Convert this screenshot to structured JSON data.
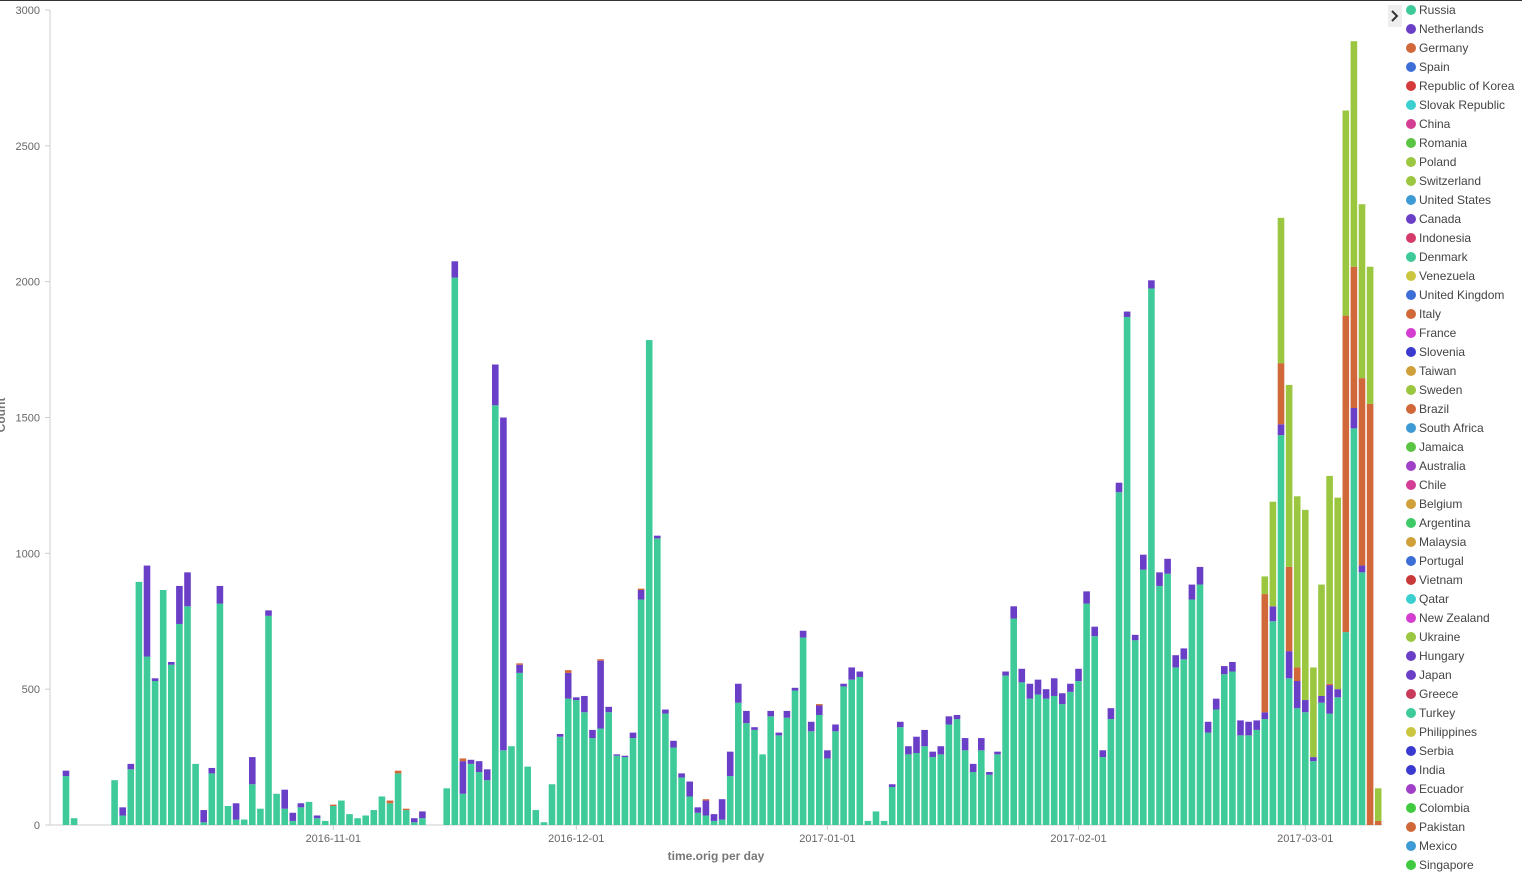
{
  "chart_data": {
    "type": "bar",
    "stacked": true,
    "x_label": "time.orig per day",
    "y_label": "Count",
    "xlim": [
      "2016-09-29",
      "2017-03-10"
    ],
    "xticks": [
      "2016-11-01",
      "2016-12-01",
      "2017-01-01",
      "2017-02-01",
      "2017-03-01"
    ],
    "ylim": [
      0,
      3000
    ],
    "yticks": [
      0,
      500,
      1000,
      1500,
      2000,
      2500,
      3000
    ],
    "series": [
      {
        "name": "Russia",
        "values": [
          180,
          25,
          0,
          0,
          0,
          0,
          165,
          35,
          205,
          895,
          620,
          530,
          865,
          590,
          740,
          805,
          225,
          10,
          190,
          815,
          70,
          20,
          20,
          150,
          60,
          770,
          115,
          60,
          15,
          65,
          85,
          25,
          15,
          70,
          90,
          40,
          25,
          35,
          55,
          105,
          80,
          190,
          55,
          10,
          25,
          0,
          0,
          135,
          2015,
          115,
          225,
          195,
          165,
          1545,
          275,
          290,
          560,
          215,
          55,
          10,
          150,
          325,
          465,
          460,
          415,
          320,
          355,
          415,
          255,
          250,
          320,
          830,
          1785,
          1055,
          410,
          285,
          175,
          105,
          45,
          35,
          15,
          20,
          180,
          450,
          375,
          350,
          260,
          400,
          330,
          395,
          495,
          690,
          345,
          405,
          245,
          345,
          510,
          535,
          545,
          15,
          50,
          15,
          140,
          360,
          260,
          265,
          290,
          250,
          260,
          370,
          390,
          275,
          195,
          275,
          185,
          260,
          550,
          760,
          525,
          465,
          480,
          465,
          475,
          445,
          490,
          530,
          815,
          695,
          250,
          390,
          1225,
          1870,
          680,
          940,
          1975,
          880,
          925,
          580,
          610,
          830,
          885,
          340,
          425,
          555,
          565,
          330,
          330,
          350,
          390,
          750,
          1435,
          540,
          430,
          415,
          235,
          450,
          410,
          470,
          710,
          1460,
          930,
          0,
          0
        ]
      },
      {
        "name": "Netherlands",
        "values": [
          20,
          0,
          0,
          0,
          0,
          0,
          0,
          30,
          20,
          0,
          335,
          10,
          0,
          10,
          140,
          125,
          0,
          45,
          20,
          65,
          0,
          60,
          0,
          100,
          0,
          20,
          0,
          70,
          30,
          15,
          0,
          10,
          0,
          0,
          0,
          0,
          0,
          0,
          0,
          0,
          0,
          0,
          0,
          15,
          25,
          0,
          0,
          0,
          60,
          120,
          15,
          40,
          40,
          150,
          1225,
          0,
          30,
          0,
          0,
          0,
          0,
          10,
          95,
          10,
          60,
          30,
          250,
          20,
          5,
          5,
          20,
          35,
          0,
          10,
          15,
          25,
          15,
          55,
          20,
          55,
          25,
          75,
          90,
          70,
          45,
          10,
          0,
          20,
          10,
          25,
          10,
          25,
          35,
          35,
          30,
          25,
          10,
          45,
          20,
          0,
          0,
          0,
          10,
          20,
          30,
          60,
          60,
          20,
          30,
          30,
          15,
          45,
          30,
          45,
          10,
          10,
          15,
          45,
          50,
          55,
          55,
          35,
          65,
          40,
          30,
          45,
          45,
          35,
          25,
          40,
          35,
          20,
          20,
          55,
          30,
          50,
          55,
          45,
          40,
          55,
          65,
          40,
          40,
          30,
          35,
          55,
          50,
          35,
          25,
          55,
          40,
          100,
          100,
          45,
          15,
          25,
          105,
          30,
          0,
          75,
          25,
          0,
          0
        ]
      },
      {
        "name": "Germany",
        "values": [
          0,
          0,
          0,
          0,
          0,
          0,
          0,
          0,
          0,
          0,
          0,
          0,
          0,
          0,
          0,
          0,
          0,
          0,
          0,
          0,
          0,
          0,
          0,
          0,
          0,
          0,
          0,
          0,
          0,
          0,
          0,
          0,
          0,
          5,
          0,
          0,
          0,
          0,
          0,
          0,
          10,
          10,
          5,
          0,
          0,
          0,
          0,
          0,
          0,
          10,
          0,
          0,
          0,
          0,
          0,
          0,
          5,
          0,
          0,
          0,
          0,
          0,
          10,
          0,
          0,
          0,
          5,
          0,
          0,
          0,
          0,
          5,
          0,
          0,
          0,
          0,
          0,
          0,
          0,
          5,
          0,
          0,
          0,
          0,
          0,
          0,
          0,
          0,
          0,
          0,
          0,
          0,
          0,
          5,
          0,
          0,
          0,
          0,
          0,
          0,
          0,
          0,
          0,
          0,
          0,
          0,
          0,
          0,
          0,
          0,
          0,
          0,
          0,
          0,
          0,
          0,
          0,
          0,
          0,
          0,
          0,
          0,
          0,
          0,
          0,
          0,
          0,
          0,
          0,
          0,
          0,
          0,
          0,
          0,
          0,
          0,
          0,
          0,
          0,
          0,
          0,
          0,
          0,
          0,
          0,
          0,
          0,
          0,
          435,
          0,
          225,
          310,
          50,
          0,
          0,
          0,
          5,
          0,
          1165,
          520,
          690,
          1550,
          15
        ]
      },
      {
        "name": "Poland",
        "values": [
          0,
          0,
          0,
          0,
          0,
          0,
          0,
          0,
          0,
          0,
          0,
          0,
          0,
          0,
          0,
          0,
          0,
          0,
          0,
          0,
          0,
          0,
          0,
          0,
          0,
          0,
          0,
          0,
          0,
          0,
          0,
          0,
          0,
          0,
          0,
          0,
          0,
          0,
          0,
          0,
          0,
          0,
          0,
          0,
          0,
          0,
          0,
          0,
          0,
          0,
          0,
          0,
          0,
          0,
          0,
          0,
          0,
          0,
          0,
          0,
          0,
          0,
          0,
          0,
          0,
          0,
          0,
          0,
          0,
          0,
          0,
          0,
          0,
          0,
          0,
          0,
          0,
          0,
          0,
          0,
          0,
          0,
          0,
          0,
          0,
          0,
          0,
          0,
          0,
          0,
          0,
          0,
          0,
          0,
          0,
          0,
          0,
          0,
          0,
          0,
          0,
          0,
          0,
          0,
          0,
          0,
          0,
          0,
          0,
          0,
          0,
          0,
          0,
          0,
          0,
          0,
          0,
          0,
          0,
          0,
          0,
          0,
          0,
          0,
          0,
          0,
          0,
          0,
          0,
          0,
          0,
          0,
          0,
          0,
          0,
          0,
          0,
          0,
          0,
          0,
          0,
          0,
          0,
          0,
          0,
          0,
          0,
          0,
          65,
          385,
          535,
          670,
          630,
          700,
          330,
          410,
          765,
          705,
          755,
          830,
          640,
          505,
          120
        ]
      }
    ],
    "legend": [
      {
        "name": "Russia",
        "color": "#3fca9a"
      },
      {
        "name": "Netherlands",
        "color": "#6a3fc8"
      },
      {
        "name": "Germany",
        "color": "#d0683a"
      },
      {
        "name": "Spain",
        "color": "#3d6ed8"
      },
      {
        "name": "Republic of Korea",
        "color": "#d63a3a"
      },
      {
        "name": "Slovak Republic",
        "color": "#3ccfd0"
      },
      {
        "name": "China",
        "color": "#d43d94"
      },
      {
        "name": "Romania",
        "color": "#5cc443"
      },
      {
        "name": "Poland",
        "color": "#9bc63f"
      },
      {
        "name": "Switzerland",
        "color": "#9bc63f"
      },
      {
        "name": "United States",
        "color": "#3e9ad4"
      },
      {
        "name": "Canada",
        "color": "#6a3fc8"
      },
      {
        "name": "Indonesia",
        "color": "#d63a6a"
      },
      {
        "name": "Denmark",
        "color": "#3fca9a"
      },
      {
        "name": "Venezuela",
        "color": "#cac63f"
      },
      {
        "name": "United Kingdom",
        "color": "#3d6ed8"
      },
      {
        "name": "Italy",
        "color": "#d0683a"
      },
      {
        "name": "France",
        "color": "#d43dd0"
      },
      {
        "name": "Slovenia",
        "color": "#3a3ad0"
      },
      {
        "name": "Taiwan",
        "color": "#d0a03a"
      },
      {
        "name": "Sweden",
        "color": "#9bc63f"
      },
      {
        "name": "Brazil",
        "color": "#d0683a"
      },
      {
        "name": "South Africa",
        "color": "#3e9ad4"
      },
      {
        "name": "Jamaica",
        "color": "#5cc443"
      },
      {
        "name": "Australia",
        "color": "#a03fc8"
      },
      {
        "name": "Chile",
        "color": "#d43d94"
      },
      {
        "name": "Belgium",
        "color": "#d0a03a"
      },
      {
        "name": "Argentina",
        "color": "#3fca6a"
      },
      {
        "name": "Malaysia",
        "color": "#d0a03a"
      },
      {
        "name": "Portugal",
        "color": "#3d6ed8"
      },
      {
        "name": "Vietnam",
        "color": "#c83a3a"
      },
      {
        "name": "Qatar",
        "color": "#3ccfd0"
      },
      {
        "name": "New Zealand",
        "color": "#d43dd0"
      },
      {
        "name": "Ukraine",
        "color": "#9bc63f"
      },
      {
        "name": "Hungary",
        "color": "#6a3fc8"
      },
      {
        "name": "Japan",
        "color": "#6a3fc8"
      },
      {
        "name": "Greece",
        "color": "#c83a5a"
      },
      {
        "name": "Turkey",
        "color": "#3fca9a"
      },
      {
        "name": "Philippines",
        "color": "#cac63f"
      },
      {
        "name": "Serbia",
        "color": "#3a3ad0"
      },
      {
        "name": "India",
        "color": "#3a3ad0"
      },
      {
        "name": "Ecuador",
        "color": "#a03fc8"
      },
      {
        "name": "Colombia",
        "color": "#3fca3f"
      },
      {
        "name": "Pakistan",
        "color": "#d0683a"
      },
      {
        "name": "Mexico",
        "color": "#3e9ad4"
      },
      {
        "name": "Singapore",
        "color": "#3fca3f"
      }
    ]
  }
}
